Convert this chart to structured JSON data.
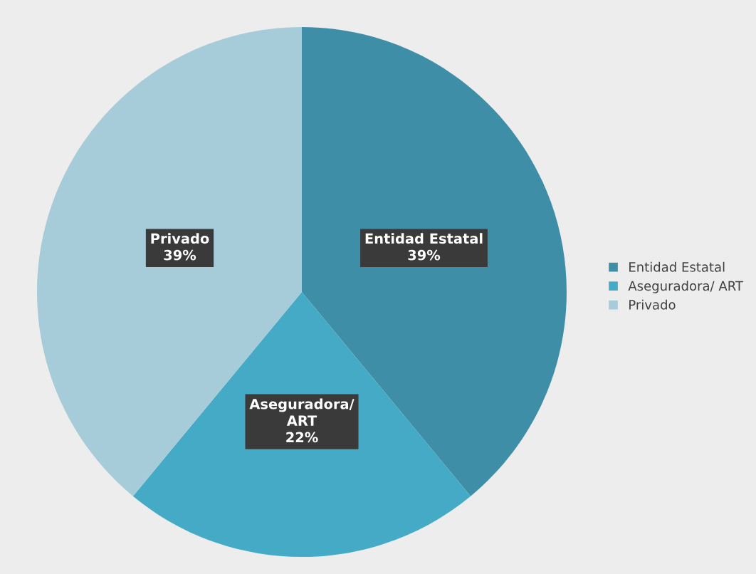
{
  "chart_data": {
    "type": "pie",
    "categories": [
      "Entidad Estatal",
      "Aseguradora/ ART",
      "Privado"
    ],
    "values": [
      39,
      22,
      39
    ],
    "colors": [
      "#3d8ea6",
      "#44aac5",
      "#a6ccda"
    ],
    "value_labels": [
      "39%",
      "22%",
      "39%"
    ],
    "legend": "right"
  }
}
